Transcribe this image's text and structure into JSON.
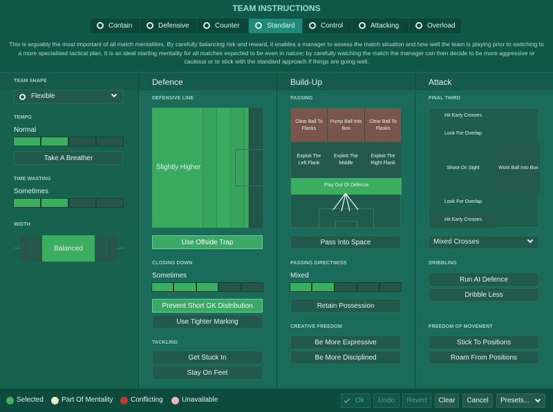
{
  "header": {
    "title": "TEAM INSTRUCTIONS",
    "tabs": [
      "Contain",
      "Defensive",
      "Counter",
      "Standard",
      "Control",
      "Attacking",
      "Overload"
    ],
    "active_tab": 3
  },
  "description": "This is arguably the most important of all match mentalities. By carefully balancing risk and reward, it enables a manager to assess the match situation and how well the team is playing prior to switching to a more specialised tactical plan. It is an ideal starting mentality for all matches expected to be even in nature; by carefully watching the match the manager can then decide to be more aggressive or cautious or to stick with the standard approach if things are going well.",
  "sidebar": {
    "team_shape": {
      "label": "TEAM SHAPE",
      "value": "Flexible"
    },
    "tempo": {
      "label": "TEMPO",
      "value": "Normal",
      "level": 2,
      "segments": 4,
      "button": "Take A Breather"
    },
    "time_wasting": {
      "label": "TIME WASTING",
      "value": "Sometimes",
      "level": 2,
      "segments": 4
    },
    "width": {
      "label": "WIDTH",
      "value": "Balanced"
    }
  },
  "defence": {
    "title": "Defence",
    "line_label": "DEFENSIVE LINE",
    "line_value": "Slightly Higher",
    "offside": {
      "text": "Use Offside Trap",
      "selected": true
    },
    "closing_label": "CLOSING DOWN",
    "closing_value": "Sometimes",
    "closing_level": 3,
    "closing_segments": 5,
    "closing_buttons": [
      {
        "text": "Prevent Short GK Distribution",
        "selected": true
      },
      {
        "text": "Use Tighter Marking",
        "selected": false
      }
    ],
    "tackling_label": "TACKLING",
    "tackling_buttons": [
      {
        "text": "Get Stuck In",
        "selected": false
      },
      {
        "text": "Stay On Feet",
        "selected": false
      }
    ]
  },
  "build_up": {
    "title": "Build-Up",
    "passing_label": "PASSING",
    "passing_grid": [
      [
        "Clear Ball To Flanks",
        "Pump Ball Into Box",
        "Clear Ball To Flanks"
      ],
      [
        "Exploit The Left Flank",
        "Exploit The Middle",
        "Exploit The Right Flank"
      ]
    ],
    "passing_selected": "Play Out Of Defence",
    "pass_space": {
      "text": "Pass Into Space",
      "selected": false
    },
    "directness_label": "PASSING DIRECTNESS",
    "directness_value": "Mixed",
    "directness_level": 2,
    "directness_segments": 5,
    "retain": {
      "text": "Retain Possession",
      "selected": false
    },
    "creative_label": "CREATIVE FREEDOM",
    "creative_buttons": [
      {
        "text": "Be More Expressive",
        "selected": false
      },
      {
        "text": "Be More Disciplined",
        "selected": false
      }
    ]
  },
  "attack": {
    "title": "Attack",
    "final_third_label": "FINAL THIRD",
    "pitch_labels": [
      "Hit Early Crosses",
      "Look For Overlap",
      "Shoot On Sight",
      "Work Ball Into Box",
      "Look For Overlap",
      "Hit Early Crosses"
    ],
    "crossing": "Mixed Crosses",
    "dribbling_label": "DRIBBLING",
    "dribbling_buttons": [
      {
        "text": "Run At Defence",
        "selected": false
      },
      {
        "text": "Dribble Less",
        "selected": false
      }
    ],
    "freedom_label": "FREEDOM OF MOVEMENT",
    "freedom_buttons": [
      {
        "text": "Stick To Positions",
        "selected": false
      },
      {
        "text": "Roam From Positions",
        "selected": false
      }
    ]
  },
  "footer": {
    "legend": [
      {
        "name": "Selected",
        "color": "#3fb35c"
      },
      {
        "name": "Part Of Mentality",
        "color": "#eaf6c9"
      },
      {
        "name": "Conflicting",
        "color": "#c0392b"
      },
      {
        "name": "Unavailable",
        "color": "#f2b8b8"
      }
    ],
    "buttons": [
      "Ok",
      "Undo",
      "Revert",
      "Clear",
      "Cancel",
      "Presets..."
    ],
    "disabled": [
      0,
      1,
      2
    ]
  }
}
